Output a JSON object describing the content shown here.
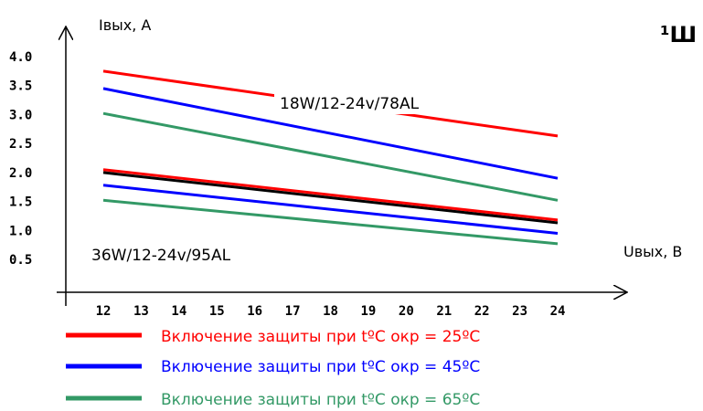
{
  "corner_mark": "¹Ш",
  "chart_data": {
    "type": "line",
    "ylabel": "Iвых, А",
    "xlabel": "Uвых, В",
    "x_ticks": [
      "12",
      "13",
      "14",
      "15",
      "16",
      "17",
      "18",
      "19",
      "20",
      "21",
      "22",
      "23",
      "24"
    ],
    "y_ticks": [
      "4.0",
      "3.5",
      "3.0",
      "2.5",
      "2.0",
      "1.5",
      "1.0",
      "0.5"
    ],
    "xlim": [
      12,
      24
    ],
    "ylim": [
      0,
      4.0
    ],
    "grid": false,
    "models": [
      {
        "name": "18W/12-24v/78AL",
        "series": [
          {
            "color": "#ff0000",
            "x": [
              12,
              24
            ],
            "y": [
              3.75,
              2.63
            ]
          },
          {
            "color": "#0000ff",
            "x": [
              12,
              24
            ],
            "y": [
              3.45,
              1.9
            ]
          },
          {
            "color": "#339966",
            "x": [
              12,
              24
            ],
            "y": [
              3.02,
              1.52
            ]
          }
        ]
      },
      {
        "name": "36W/12-24v/95AL",
        "series": [
          {
            "color": "#ff0000",
            "x": [
              12,
              24
            ],
            "y": [
              2.05,
              1.18
            ]
          },
          {
            "color": "#000000",
            "x": [
              12,
              24
            ],
            "y": [
              2.0,
              1.13
            ]
          },
          {
            "color": "#0000ff",
            "x": [
              12,
              24
            ],
            "y": [
              1.78,
              0.95
            ]
          },
          {
            "color": "#339966",
            "x": [
              12,
              24
            ],
            "y": [
              1.52,
              0.77
            ]
          }
        ]
      }
    ],
    "legend": [
      {
        "color": "#ff0000",
        "text": "Включение защиты при tºC окр = 25ºC"
      },
      {
        "color": "#0000ff",
        "text": "Включение защиты при tºC окр = 45ºC"
      },
      {
        "color": "#339966",
        "text": "Включение защиты при tºC окр = 65ºC"
      }
    ]
  }
}
